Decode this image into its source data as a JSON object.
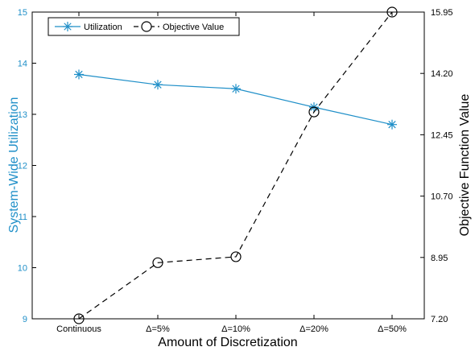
{
  "chart_data": {
    "type": "line",
    "categories": [
      "Continuous",
      "Δ=5%",
      "Δ=10%",
      "Δ=20%",
      "Δ=50%"
    ],
    "series": [
      {
        "name": "Utilization",
        "axis": "left",
        "values": [
          13.78,
          13.58,
          13.5,
          13.14,
          12.8
        ],
        "color": "#1f8fc8",
        "marker": "asterisk",
        "line_style": "solid"
      },
      {
        "name": "Objective Value",
        "axis": "right",
        "values": [
          7.2,
          8.8,
          8.97,
          13.1,
          15.95
        ],
        "color": "#000000",
        "marker": "open-circle",
        "line_style": "dashed"
      }
    ],
    "xlabel": "Amount of Discretization",
    "ylabel_left": "System-Wide Utilization",
    "ylabel_right": "Objective Function Value",
    "ylim_left": [
      9,
      15
    ],
    "ylim_right": [
      7.2,
      15.95
    ],
    "yticks_left": [
      "9",
      "10",
      "11",
      "12",
      "13",
      "14",
      "15"
    ],
    "yticks_right": [
      "7.20",
      "8.95",
      "10.70",
      "12.45",
      "14.20",
      "15.95"
    ],
    "ylabel_left_color": "#1f8fc8",
    "grid": false,
    "legend_position": "top-left"
  }
}
